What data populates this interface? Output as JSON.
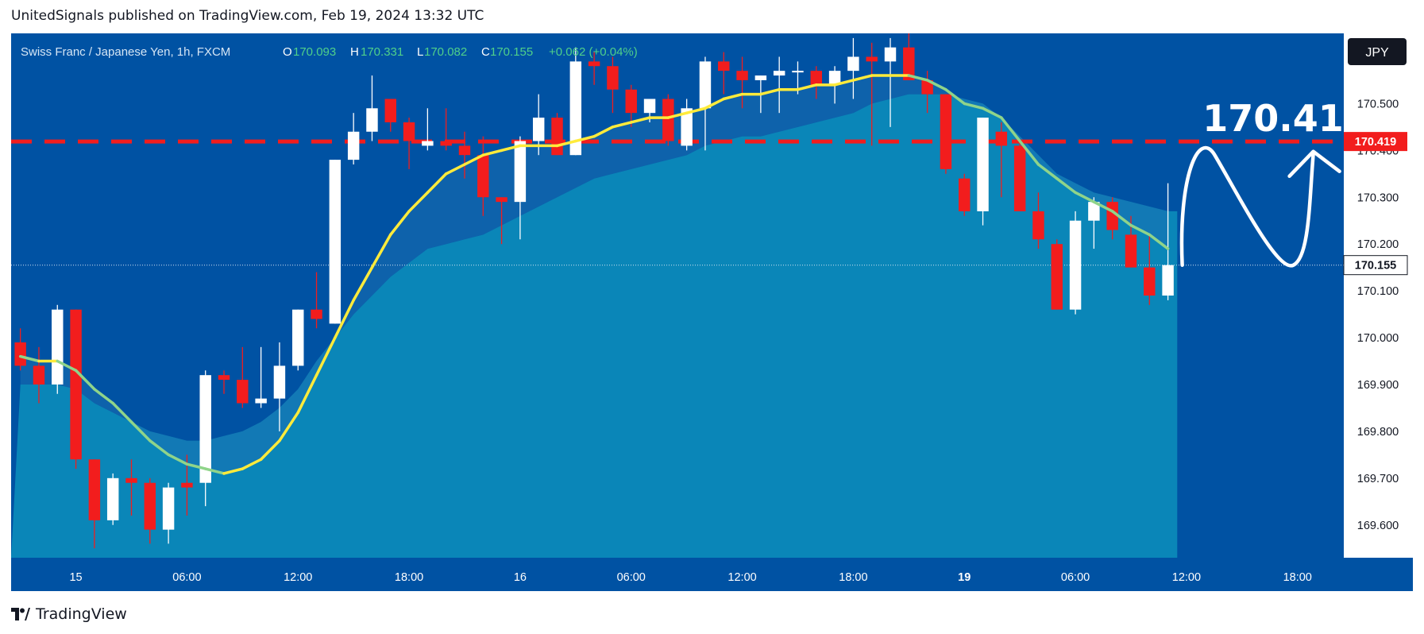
{
  "header": {
    "text": "UnitedSignals published on TradingView.com, Feb 19, 2024 13:32 UTC"
  },
  "footer": {
    "brand": "TradingView"
  },
  "colors": {
    "background": "#0052a3",
    "area": "#0a86b8",
    "candle_up": "#ffffff",
    "candle_down": "#f21d1d",
    "fast_ma": "#ffeb3b",
    "slow_ma": "#8fd48a",
    "resistance": "#f21d1d",
    "annotation": "#ffffff"
  },
  "chart_data": {
    "type": "candlestick",
    "symbol": "Swiss Franc  / Japanese Yen, 1h, FXCM",
    "legend": {
      "o_label": "O",
      "o": "170.093",
      "h_label": "H",
      "h": "170.331",
      "l_label": "L",
      "l": "170.082",
      "c_label": "C",
      "c": "170.155",
      "change": "+0.062 (+0.04%)"
    },
    "currency": "JPY",
    "ylim": [
      169.53,
      170.65
    ],
    "y_ticks": [
      "170.500",
      "170.400",
      "170.300",
      "170.200",
      "170.100",
      "170.000",
      "169.900",
      "169.800",
      "169.700",
      "169.600"
    ],
    "x_ticks": [
      {
        "label": "15",
        "index": 3,
        "bold": false
      },
      {
        "label": "06:00",
        "index": 9,
        "bold": false
      },
      {
        "label": "12:00",
        "index": 15,
        "bold": false
      },
      {
        "label": "18:00",
        "index": 21,
        "bold": false
      },
      {
        "label": "16",
        "index": 27,
        "bold": false
      },
      {
        "label": "06:00",
        "index": 33,
        "bold": false
      },
      {
        "label": "12:00",
        "index": 39,
        "bold": false
      },
      {
        "label": "18:00",
        "index": 45,
        "bold": false
      },
      {
        "label": "19",
        "index": 51,
        "bold": true
      },
      {
        "label": "06:00",
        "index": 57,
        "bold": false
      },
      {
        "label": "12:00",
        "index": 63,
        "bold": false
      },
      {
        "label": "18:00",
        "index": 69,
        "bold": false
      }
    ],
    "x_slots": 72,
    "candles": [
      [
        169.99,
        170.02,
        169.93,
        169.94
      ],
      [
        169.94,
        169.98,
        169.86,
        169.9
      ],
      [
        169.9,
        170.07,
        169.88,
        170.06
      ],
      [
        170.06,
        170.06,
        169.72,
        169.74
      ],
      [
        169.74,
        169.74,
        169.55,
        169.61
      ],
      [
        169.61,
        169.71,
        169.6,
        169.7
      ],
      [
        169.7,
        169.74,
        169.62,
        169.69
      ],
      [
        169.69,
        169.7,
        169.56,
        169.59
      ],
      [
        169.59,
        169.69,
        169.56,
        169.68
      ],
      [
        169.69,
        169.75,
        169.62,
        169.68
      ],
      [
        169.69,
        169.93,
        169.64,
        169.92
      ],
      [
        169.92,
        169.93,
        169.88,
        169.91
      ],
      [
        169.91,
        169.98,
        169.85,
        169.86
      ],
      [
        169.86,
        169.98,
        169.85,
        169.87
      ],
      [
        169.87,
        169.99,
        169.8,
        169.94
      ],
      [
        169.94,
        170.06,
        169.93,
        170.06
      ],
      [
        170.06,
        170.14,
        170.02,
        170.04
      ],
      [
        170.03,
        170.38,
        170.03,
        170.38
      ],
      [
        170.38,
        170.48,
        170.37,
        170.44
      ],
      [
        170.44,
        170.56,
        170.42,
        170.49
      ],
      [
        170.51,
        170.51,
        170.44,
        170.46
      ],
      [
        170.46,
        170.47,
        170.36,
        170.42
      ],
      [
        170.41,
        170.49,
        170.4,
        170.42
      ],
      [
        170.42,
        170.49,
        170.4,
        170.41
      ],
      [
        170.41,
        170.44,
        170.34,
        170.39
      ],
      [
        170.39,
        170.43,
        170.26,
        170.3
      ],
      [
        170.3,
        170.3,
        170.2,
        170.29
      ],
      [
        170.29,
        170.43,
        170.21,
        170.42
      ],
      [
        170.42,
        170.52,
        170.39,
        170.47
      ],
      [
        170.47,
        170.48,
        170.39,
        170.39
      ],
      [
        170.39,
        170.62,
        170.39,
        170.59
      ],
      [
        170.59,
        170.61,
        170.54,
        170.58
      ],
      [
        170.58,
        170.6,
        170.48,
        170.53
      ],
      [
        170.53,
        170.54,
        170.45,
        170.48
      ],
      [
        170.48,
        170.51,
        170.46,
        170.51
      ],
      [
        170.51,
        170.52,
        170.41,
        170.42
      ],
      [
        170.41,
        170.51,
        170.4,
        170.49
      ],
      [
        170.49,
        170.6,
        170.4,
        170.59
      ],
      [
        170.59,
        170.61,
        170.52,
        170.57
      ],
      [
        170.57,
        170.6,
        170.49,
        170.55
      ],
      [
        170.55,
        170.56,
        170.48,
        170.56
      ],
      [
        170.56,
        170.6,
        170.48,
        170.57
      ],
      [
        170.57,
        170.59,
        170.52,
        170.57
      ],
      [
        170.57,
        170.58,
        170.51,
        170.54
      ],
      [
        170.54,
        170.58,
        170.5,
        170.57
      ],
      [
        170.57,
        170.64,
        170.51,
        170.6
      ],
      [
        170.6,
        170.63,
        170.41,
        170.59
      ],
      [
        170.59,
        170.64,
        170.45,
        170.62
      ],
      [
        170.62,
        170.65,
        170.55,
        170.55
      ],
      [
        170.55,
        170.57,
        170.48,
        170.52
      ],
      [
        170.52,
        170.52,
        170.35,
        170.36
      ],
      [
        170.34,
        170.35,
        170.26,
        170.27
      ],
      [
        170.27,
        170.47,
        170.24,
        170.47
      ],
      [
        170.44,
        170.46,
        170.3,
        170.41
      ],
      [
        170.41,
        170.42,
        170.27,
        170.27
      ],
      [
        170.27,
        170.31,
        170.19,
        170.21
      ],
      [
        170.2,
        170.21,
        170.06,
        170.06
      ],
      [
        170.06,
        170.27,
        170.05,
        170.25
      ],
      [
        170.25,
        170.3,
        170.19,
        170.29
      ],
      [
        170.29,
        170.3,
        170.21,
        170.23
      ],
      [
        170.22,
        170.26,
        170.15,
        170.15
      ],
      [
        170.15,
        170.22,
        170.07,
        170.09
      ],
      [
        170.09,
        170.33,
        170.08,
        170.155
      ]
    ],
    "fast_ma": [
      [
        0,
        169.96
      ],
      [
        1,
        169.95
      ],
      [
        2,
        169.95
      ],
      [
        3,
        169.93
      ],
      [
        4,
        169.89
      ],
      [
        5,
        169.86
      ],
      [
        6,
        169.82
      ],
      [
        7,
        169.78
      ],
      [
        8,
        169.75
      ],
      [
        9,
        169.73
      ],
      [
        10,
        169.72
      ],
      [
        11,
        169.71
      ],
      [
        12,
        169.72
      ],
      [
        13,
        169.74
      ],
      [
        14,
        169.78
      ],
      [
        15,
        169.84
      ],
      [
        16,
        169.92
      ],
      [
        17,
        170.0
      ],
      [
        18,
        170.08
      ],
      [
        19,
        170.15
      ],
      [
        20,
        170.22
      ],
      [
        21,
        170.27
      ],
      [
        22,
        170.31
      ],
      [
        23,
        170.35
      ],
      [
        24,
        170.37
      ],
      [
        25,
        170.39
      ],
      [
        26,
        170.4
      ],
      [
        27,
        170.41
      ],
      [
        28,
        170.41
      ],
      [
        29,
        170.41
      ],
      [
        30,
        170.42
      ],
      [
        31,
        170.43
      ],
      [
        32,
        170.45
      ],
      [
        33,
        170.46
      ],
      [
        34,
        170.47
      ],
      [
        35,
        170.47
      ],
      [
        36,
        170.48
      ],
      [
        37,
        170.49
      ],
      [
        38,
        170.51
      ],
      [
        39,
        170.52
      ],
      [
        40,
        170.52
      ],
      [
        41,
        170.53
      ],
      [
        42,
        170.53
      ],
      [
        43,
        170.54
      ],
      [
        44,
        170.54
      ],
      [
        45,
        170.55
      ],
      [
        46,
        170.56
      ],
      [
        47,
        170.56
      ],
      [
        48,
        170.56
      ],
      [
        49,
        170.55
      ],
      [
        50,
        170.53
      ],
      [
        51,
        170.5
      ],
      [
        52,
        170.49
      ],
      [
        53,
        170.47
      ],
      [
        54,
        170.42
      ],
      [
        55,
        170.37
      ],
      [
        56,
        170.34
      ],
      [
        57,
        170.31
      ],
      [
        58,
        170.29
      ],
      [
        59,
        170.27
      ],
      [
        60,
        170.24
      ],
      [
        61,
        170.22
      ],
      [
        62,
        170.19
      ]
    ],
    "slow_ma": [
      [
        0,
        169.9
      ],
      [
        1,
        169.9
      ],
      [
        2,
        169.9
      ],
      [
        3,
        169.89
      ],
      [
        4,
        169.86
      ],
      [
        5,
        169.84
      ],
      [
        6,
        169.82
      ],
      [
        7,
        169.8
      ],
      [
        8,
        169.79
      ],
      [
        9,
        169.78
      ],
      [
        10,
        169.78
      ],
      [
        11,
        169.79
      ],
      [
        12,
        169.8
      ],
      [
        13,
        169.82
      ],
      [
        14,
        169.85
      ],
      [
        15,
        169.89
      ],
      [
        16,
        169.95
      ],
      [
        17,
        170.0
      ],
      [
        18,
        170.05
      ],
      [
        19,
        170.09
      ],
      [
        20,
        170.13
      ],
      [
        21,
        170.16
      ],
      [
        22,
        170.19
      ],
      [
        23,
        170.2
      ],
      [
        24,
        170.21
      ],
      [
        25,
        170.22
      ],
      [
        26,
        170.24
      ],
      [
        27,
        170.26
      ],
      [
        28,
        170.28
      ],
      [
        29,
        170.3
      ],
      [
        30,
        170.32
      ],
      [
        31,
        170.34
      ],
      [
        32,
        170.35
      ],
      [
        33,
        170.36
      ],
      [
        34,
        170.37
      ],
      [
        35,
        170.38
      ],
      [
        36,
        170.39
      ],
      [
        37,
        170.41
      ],
      [
        38,
        170.42
      ],
      [
        39,
        170.43
      ],
      [
        40,
        170.43
      ],
      [
        41,
        170.44
      ],
      [
        42,
        170.45
      ],
      [
        43,
        170.46
      ],
      [
        44,
        170.47
      ],
      [
        45,
        170.48
      ],
      [
        46,
        170.5
      ],
      [
        47,
        170.51
      ],
      [
        48,
        170.52
      ],
      [
        49,
        170.52
      ],
      [
        50,
        170.52
      ],
      [
        51,
        170.51
      ],
      [
        52,
        170.5
      ],
      [
        53,
        170.47
      ],
      [
        54,
        170.43
      ],
      [
        55,
        170.39
      ],
      [
        56,
        170.35
      ],
      [
        57,
        170.33
      ],
      [
        58,
        170.31
      ],
      [
        59,
        170.3
      ],
      [
        60,
        170.29
      ],
      [
        61,
        170.28
      ],
      [
        62,
        170.27
      ]
    ],
    "resistance_level": 170.419,
    "resistance_label": "170.419",
    "last_price": 170.155,
    "last_price_label": "170.155",
    "target_annotation": "170.41"
  }
}
